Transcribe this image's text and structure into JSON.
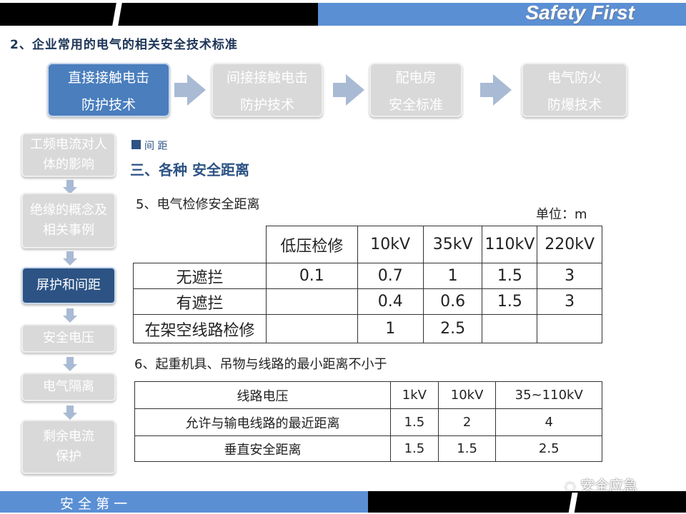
{
  "header": {
    "brand": "Safety First",
    "subtitle": "2、企业常用的电气的相关安全技术标准"
  },
  "process_steps": [
    {
      "line1": "直接接触电击",
      "line2": "防护技术",
      "active": true
    },
    {
      "line1": "间接接触电击",
      "line2": "防护技术",
      "active": false
    },
    {
      "line1": "配电房",
      "line2": "安全标准",
      "active": false
    },
    {
      "line1": "电气防火",
      "line2": "防爆技术",
      "active": false
    }
  ],
  "sidebar": {
    "items": [
      {
        "label": "工频电流对人体的影响",
        "active": false
      },
      {
        "label": "绝缘的概念及相关事例",
        "active": false
      },
      {
        "label": "屏护和间距",
        "active": true
      },
      {
        "label": "安全电压",
        "active": false
      },
      {
        "label": "电气隔离",
        "active": false
      },
      {
        "label": "剩余电流保护",
        "active": false
      }
    ]
  },
  "content": {
    "tag": "间 距",
    "heading": "三、各种 安全距离",
    "section5": "5、电气检修安全距离",
    "unit": "单位：m",
    "table1": {
      "headers": [
        "",
        "低压检修",
        "10kV",
        "35kV",
        "110kV",
        "220kV"
      ],
      "rows": [
        [
          "无遮拦",
          "0.1",
          "0.7",
          "1",
          "1.5",
          "3"
        ],
        [
          "有遮拦",
          "",
          "0.4",
          "0.6",
          "1.5",
          "3"
        ],
        [
          "在架空线路检修",
          "",
          "1",
          "2.5",
          "",
          ""
        ]
      ]
    },
    "section6": "6、起重机具、吊物与线路的最小距离不小于",
    "table2": {
      "headers": [
        "线路电压",
        "1kV",
        "10kV",
        "35~110kV"
      ],
      "rows": [
        [
          "允许与输电线路的最近距离",
          "1.5",
          "2",
          "4"
        ],
        [
          "垂直安全距离",
          "1.5",
          "1.5",
          "2.5"
        ]
      ]
    }
  },
  "footer": {
    "motto": "安 全 第 一",
    "watermark": "安全应急"
  },
  "colors": {
    "accent_blue": "#5b8fd4",
    "active_step": "#4a7ebd",
    "active_side": "#2c5384",
    "inactive": "#d9d9d9"
  }
}
